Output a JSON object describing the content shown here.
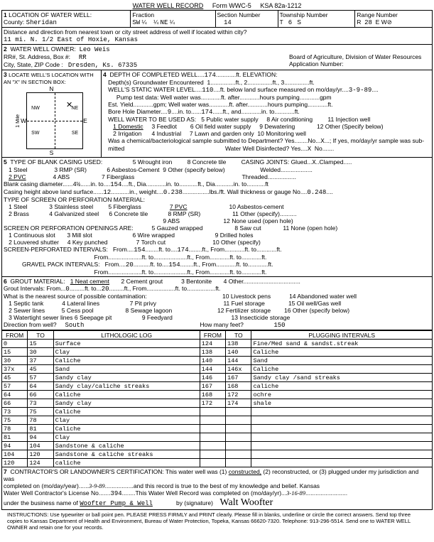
{
  "header": {
    "title": "WATER WELL RECORD",
    "form": "Form WWC-5",
    "ksa": "KSA 82a-1212"
  },
  "sec1": {
    "label": "LOCATION OF WATER WELL:",
    "county_label": "County:",
    "county": "Sheridan",
    "fraction_label": "Fraction",
    "fr1": "SW",
    "fr2": "NE",
    "section_label": "Section Number",
    "section": "14",
    "twp_label": "Township Number",
    "twp_t": "T",
    "twp": "6",
    "twp_s": "S",
    "range_label": "Range Number",
    "range_r": "R",
    "range": "28",
    "range_ew": "E  W",
    "dist_label": "Distance and direction from nearest town or city street address of well if located within city?",
    "dist": "11 mi. N. 1/2 East of Hoxie, Kansas"
  },
  "sec2": {
    "label": "WATER WELL OWNER:",
    "owner": "Leo Weis",
    "rr_label": "RR#, St. Address, Box #:",
    "rr": "RR",
    "city_label": "City, State, ZIP Code  :",
    "city": "Dresden, Ks. 67335",
    "board": "Board of Agriculture, Division of Water Resources",
    "app": "Application Number:"
  },
  "sec3": {
    "label": "LOCATE WELL'S LOCATION WITH AN \"X\" IN SECTION BOX:",
    "n": "N",
    "s": "S",
    "e": "E",
    "w": "W",
    "nw": "NW",
    "ne": "NE",
    "sw": "SW",
    "se": "SE",
    "mile": "1 Mile"
  },
  "sec4": {
    "label": "DEPTH OF COMPLETED WELL",
    "depth": "174",
    "elev": "ft. ELEVATION:",
    "dgw": "Depth(s) Groundwater Encountered",
    "d1": "1",
    "d2": "ft., 2",
    "d3": "ft., 3",
    "dft": "ft.",
    "static_label": "WELL'S STATIC WATER LEVEL",
    "static": "110",
    "static_after": "ft. below land surface measured on mo/day/yr",
    "static_date": "3-9-89",
    "pump_label": "Pump test data:  Well water was",
    "pump_after": "ft. after",
    "pump_hours": "hours pumping",
    "gpm": "gpm",
    "est_label": "Est. Yield",
    "est_mid": "gpm; Well water was",
    "bore_label": "Bore Hole Diameter",
    "bore1": "9",
    "bore_in": "in. to",
    "bore2": "174",
    "bore_ft": "ft., and",
    "bore_in2": "in. to",
    "bore_ft2": "ft.",
    "use_label": "WELL WATER TO BE USED AS:",
    "u1": "1 Domestic",
    "u2": "2 Irrigation",
    "u3": "3 Feedlot",
    "u4": "4 Industrial",
    "u5": "5 Public water supply",
    "u6": "6 Oil field water supply",
    "u7": "7 Lawn and garden only",
    "u8": "8 Air conditioning",
    "u9": "9 Dewatering",
    "u10": "10 Monitoring well",
    "u11": "11 Injection well",
    "u12": "12 Other (Specify below)",
    "chem": "Was a chemical/bacteriological sample submitted to Department? Yes",
    "no": "No",
    "x": "X",
    "chem2": "; If yes, mo/day/yr sample was sub-",
    "mitted": "mitted",
    "disinfect": "Water Well Disinfected?  Yes",
    "no2": "No"
  },
  "sec5": {
    "label": "TYPE OF BLANK CASING USED:",
    "c1": "1 Steel",
    "c2": "2 PVC",
    "c3": "3 RMP (SR)",
    "c4": "4 ABS",
    "c5": "5 Wrought iron",
    "c6": "6 Asbestos-Cement",
    "c7": "7 Fiberglass",
    "c8": "8 Concrete tile",
    "c9": "9 Other (specify below)",
    "joints": "CASING JOINTS: Glued",
    "jx": "X",
    "clamp": "Clamped",
    "welded": "Welded",
    "threaded": "Threaded",
    "dia_label": "Blank casing diameter",
    "dia": "4½",
    "into": "in. to",
    "dia2": "154",
    "ftdia": "ft., Dia.",
    "into2": "in. to",
    "ftdia2": "ft., Dia",
    "into3": "in. to",
    "ft3": "ft",
    "height_label": "Casing height above land surface",
    "height": "12",
    "weight_label": "in., weight",
    "weight": "0.238",
    "lbs": "lbs./ft. Wall thickness or gauge No.",
    "gauge": "0.248",
    "screen_label": "TYPE OF SCREEN OR PERFORATION MATERIAL:",
    "s1": "1 Steel",
    "s2": "2 Brass",
    "s3": "3 Stainless steel",
    "s4": "4 Galvanized steel",
    "s5": "5 Fiberglass",
    "s6": "6 Concrete tile",
    "s7": "7 PVC",
    "s8": "8 RMP (SR)",
    "s9": "9 ABS",
    "s10": "10 Asbestos-cement",
    "s11": "11 Other (specify)",
    "s12": "12 None used (open hole)",
    "open_label": "SCREEN OR PERFORATION OPENINGS ARE:",
    "o1": "1 Continuous slot",
    "o2": "2 Louvered shutter",
    "o3": "3 Mill slot",
    "o4": "4 Key punched",
    "o5": "5 Gauzed wrapped",
    "o6": "6 Wire wrapped",
    "o7": "7 Torch cut",
    "o8": "8 Saw cut",
    "o9": "9 Drilled holes",
    "o10": "10 Other (specify)",
    "o11": "11 None (open hole)",
    "sp_label": "SCREEN-PERFORATED INTERVALS:",
    "from": "From",
    "sp1": "154",
    "to": "ft. to",
    "sp2": "174",
    "ftfrom": "ft., From",
    "ft": "ft.",
    "gp_label": "GRAVEL PACK INTERVALS:",
    "gp1": "20",
    "gp2": "154"
  },
  "sec6": {
    "label": "GROUT MATERIAL:",
    "g1": "1 Neat cement",
    "g2": "2 Cement grout",
    "g3": "3 Bentonite",
    "g4": "4 Other",
    "gi": "Grout Intervals:  From",
    "gi1": "0",
    "gito": "ft. to",
    "gi2": "20",
    "gift": "ft., From",
    "gift2": "ft. to",
    "gift3": "ft.",
    "contam": "What is the nearest source of possible contamination:",
    "p1": "1 Septic tank",
    "p2": "2 Sewer lines",
    "p3": "3 Watertight sewer lines",
    "p4": "4 Lateral lines",
    "p5": "5 Cess pool",
    "p6": "6 Seepage pit",
    "p7": "7 Pit privy",
    "p8": "8 Sewage lagoon",
    "p9": "9 Feedyard",
    "p10": "10 Livestock pens",
    "p11": "11 Fuel storage",
    "p12": "12 Fertilizer storage",
    "p13": "13 Insecticide storage",
    "p14": "14 Abandoned water well",
    "p15": "15 Oil well/Gas well",
    "p16": "16 Other (specify below)",
    "dir_label": "Direction from well?",
    "dir": "South",
    "feet_label": "How many feet?",
    "feet": "150"
  },
  "log": {
    "h1": "FROM",
    "h2": "TO",
    "h3": "LITHOLOGIC LOG",
    "h4": "FROM",
    "h5": "TO",
    "h6": "PLUGGING INTERVALS",
    "rows": [
      [
        "0",
        "15",
        "Surface",
        "124",
        "138",
        "Fine/Med sand & sandst.streak"
      ],
      [
        "15",
        "30",
        "Clay",
        "138",
        "140",
        "Caliche"
      ],
      [
        "30",
        "37",
        "Caliche",
        "140",
        "144",
        "Sand"
      ],
      [
        "37x",
        "45",
        "Sand",
        "144",
        "146x",
        "Caliche"
      ],
      [
        "45",
        "57",
        "Sandy clay",
        "146",
        "167",
        "Sandy clay /sand streaks"
      ],
      [
        "57",
        "64",
        "Sandy clay/caliche streaks",
        "167",
        "168",
        "caliche"
      ],
      [
        "64",
        "66",
        "Caliche",
        "168",
        "172",
        "ochre"
      ],
      [
        "66",
        "73",
        "Sandy clay",
        "172",
        "174",
        "shale"
      ],
      [
        "73",
        "75",
        "Caliche",
        "",
        "",
        ""
      ],
      [
        "75",
        "78",
        "Clay",
        "",
        "",
        ""
      ],
      [
        "78",
        "81",
        "Caliche",
        "",
        "",
        ""
      ],
      [
        "81",
        "94",
        "Clay",
        "",
        "",
        ""
      ],
      [
        "94",
        "104",
        "Sandstone & caliche",
        "",
        "",
        ""
      ],
      [
        "104",
        "120",
        "Sandstone & caliche streaks",
        "",
        "",
        ""
      ],
      [
        "120",
        "124",
        "caliche",
        "",
        "",
        ""
      ]
    ]
  },
  "sec7": {
    "label": "CONTRACTOR'S OR LANDOWNER'S CERTIFICATION: This water well was (1)",
    "constructed": "constructed,",
    "label2": "(2) reconstructed, or (3) plugged under my jurisdiction and was",
    "comp": "completed on (mo/day/year)",
    "date1": "3-9-89",
    "record": "and this record is true to the best of my knowledge and belief. Kansas",
    "lic": "Water Well Contractor's License No.",
    "licno": "394",
    "rec2": "This Water Well Record was completed on (mo/day/yr)",
    "date2": "3-16-89",
    "bus": "under the business name of",
    "busname": "Woofter Pump & Well",
    "sig": "by (signature)",
    "signame": "Walt Woofter",
    "instr": "INSTRUCTIONS: Use typewriter or ball point pen. PLEASE PRESS FIRMLY and PRINT clearly. Please fill in blanks, underline or circle the correct answers. Send top three copies to Kansas Department of Health and Environment, Bureau of Water Protection, Topeka, Kansas 66620-7320. Telephone: 913-296-5514. Send one to WATER WELL OWNER and retain one for your records."
  }
}
